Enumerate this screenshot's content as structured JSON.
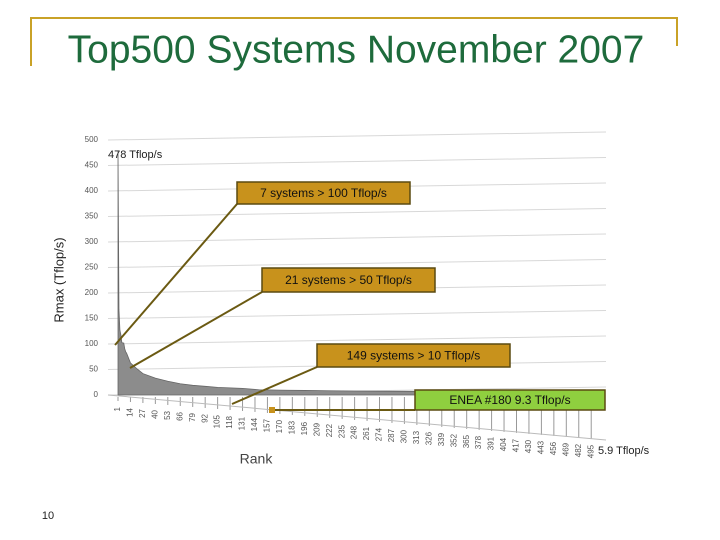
{
  "chart_data": {
    "type": "area",
    "title": "Top500 Systems November 2007",
    "ylabel": "Rmax (Tflop/s)",
    "xlabel": "Rank",
    "x": [
      1,
      2,
      3,
      4,
      5,
      6,
      7,
      8,
      9,
      10,
      14,
      21,
      27,
      40,
      53,
      66,
      79,
      92,
      105,
      118,
      131,
      144,
      149,
      157,
      170,
      180,
      196,
      222,
      248,
      274,
      300,
      326,
      352,
      378,
      404,
      430,
      456,
      482,
      500
    ],
    "values": [
      478,
      167,
      127,
      118,
      103,
      102,
      102,
      91,
      85,
      82,
      63,
      51,
      42,
      33,
      27,
      22,
      19,
      17,
      15,
      14,
      13,
      11,
      10,
      10,
      9.6,
      9.3,
      8.9,
      8.3,
      7.9,
      7.5,
      7.2,
      6.9,
      6.7,
      6.5,
      6.3,
      6.2,
      6.0,
      6.0,
      5.9
    ],
    "color": "#8c8c8c",
    "xlim": [
      1,
      500
    ],
    "ylim": [
      0,
      500
    ],
    "yticks": [
      0,
      50,
      100,
      150,
      200,
      250,
      300,
      350,
      400,
      450,
      500
    ],
    "xticks": [
      1,
      14,
      27,
      40,
      53,
      66,
      79,
      92,
      105,
      118,
      131,
      144,
      157,
      170,
      183,
      196,
      209,
      222,
      235,
      248,
      261,
      274,
      287,
      300,
      313,
      326,
      339,
      352,
      365,
      378,
      391,
      404,
      417,
      430,
      443,
      456,
      469,
      482,
      495
    ],
    "grid": true,
    "annotations": [
      "478 Tflop/s",
      "7 systems > 100 Tflop/s",
      "21 systems > 50 Tflop/s",
      "149  systems > 10 Tflop/s",
      "ENEA #180  9.3 Tflop/s",
      "5.9 Tflop/s"
    ]
  },
  "page_number": "10"
}
